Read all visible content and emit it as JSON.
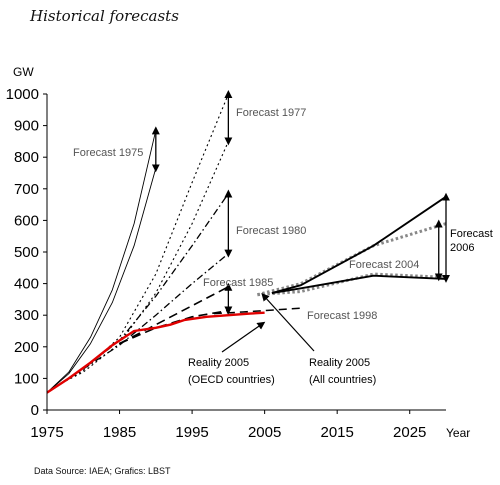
{
  "heading": "Historical forecasts",
  "source": "Data Source: IAEA; Grafics: LBST",
  "chart_data": {
    "type": "line",
    "ylabel": "GW",
    "xlabel": "Year",
    "xlim": [
      1975,
      2030
    ],
    "ylim": [
      0,
      1000
    ],
    "x_ticks": [
      1975,
      1985,
      1995,
      2005,
      2015,
      2025
    ],
    "y_ticks": [
      0,
      100,
      200,
      300,
      400,
      500,
      600,
      700,
      800,
      900,
      1000
    ],
    "grid": false,
    "series": [
      {
        "name": "Forecast 1975",
        "style": "solid-thin",
        "color": "#000000",
        "x": [
          1975,
          1978,
          1981,
          1984,
          1987,
          1990
        ],
        "y": [
          55,
          120,
          230,
          380,
          590,
          885
        ]
      },
      {
        "name": "",
        "style": "solid-thin",
        "color": "#000000",
        "x": [
          1975,
          1978,
          1981,
          1984,
          1987,
          1990
        ],
        "y": [
          55,
          115,
          210,
          340,
          520,
          765
        ]
      },
      {
        "name": "Forecast 1977",
        "style": "dotted",
        "color": "#000000",
        "x": [
          1977,
          1980,
          1985,
          1990,
          1995,
          2000
        ],
        "y": [
          85,
          125,
          230,
          430,
          720,
          1000
        ]
      },
      {
        "name": "",
        "style": "dotted",
        "color": "#000000",
        "x": [
          1977,
          1980,
          1985,
          1990,
          1995,
          2000
        ],
        "y": [
          85,
          120,
          210,
          370,
          590,
          850
        ]
      },
      {
        "name": "Forecast 1980",
        "style": "dashdot",
        "color": "#000000",
        "x": [
          1980,
          1985,
          1990,
          1995,
          2000
        ],
        "y": [
          130,
          220,
          360,
          520,
          685
        ]
      },
      {
        "name": "",
        "style": "dashdot",
        "color": "#000000",
        "x": [
          1980,
          1985,
          1990,
          1995,
          2000
        ],
        "y": [
          130,
          205,
          300,
          400,
          495
        ]
      },
      {
        "name": "Forecast 1985",
        "style": "dashed",
        "color": "#000000",
        "x": [
          1985,
          1990,
          1995,
          2000
        ],
        "y": [
          210,
          270,
          330,
          390
        ]
      },
      {
        "name": "",
        "style": "dashed",
        "color": "#000000",
        "x": [
          1985,
          1990,
          1995,
          2000
        ],
        "y": [
          210,
          260,
          295,
          315
        ]
      },
      {
        "name": "Forecast 1998",
        "style": "long-dashed",
        "color": "#000000",
        "x": [
          1998,
          2002,
          2006,
          2010
        ],
        "y": [
          305,
          310,
          316,
          322
        ]
      },
      {
        "name": "Forecast 2004",
        "style": "gray-dotted",
        "color": "#888888",
        "x": [
          2004,
          2010,
          2020,
          2030
        ],
        "y": [
          365,
          400,
          520,
          590
        ]
      },
      {
        "name": "",
        "style": "gray-dotted",
        "color": "#888888",
        "x": [
          2004,
          2010,
          2020,
          2030
        ],
        "y": [
          365,
          375,
          430,
          420
        ]
      },
      {
        "name": "Forecast 2006",
        "style": "solid-thick",
        "color": "#000000",
        "x": [
          2006,
          2010,
          2020,
          2030
        ],
        "y": [
          370,
          395,
          520,
          675
        ]
      },
      {
        "name": "",
        "style": "solid-thick",
        "color": "#000000",
        "x": [
          2006,
          2010,
          2020,
          2030
        ],
        "y": [
          370,
          385,
          425,
          415
        ]
      },
      {
        "name": "Reality 2005 (OECD countries)",
        "style": "solid-red",
        "color": "#e00000",
        "x": [
          1975,
          1978,
          1981,
          1984,
          1987,
          1990,
          1992,
          1994,
          1997,
          2000,
          2003,
          2005
        ],
        "y": [
          55,
          100,
          150,
          205,
          250,
          260,
          270,
          285,
          295,
          300,
          305,
          308
        ]
      }
    ],
    "annotations": [
      {
        "text": "Forecast 1975",
        "style": "gray"
      },
      {
        "text": "Forecast 1977",
        "style": "gray"
      },
      {
        "text": "Forecast 1980",
        "style": "gray"
      },
      {
        "text": "Forecast 1985",
        "style": "gray"
      },
      {
        "text": "Forecast 1998",
        "style": "gray"
      },
      {
        "text": "Forecast 2004",
        "style": "gray"
      },
      {
        "text": "Forecast",
        "style": "dark"
      },
      {
        "text": "2006",
        "style": "dark"
      },
      {
        "text": "Reality 2005",
        "style": "dark"
      },
      {
        "text": "(OECD countries)",
        "style": "dark"
      },
      {
        "text": "Reality 2005",
        "style": "dark"
      },
      {
        "text": "(All countries)",
        "style": "dark"
      }
    ],
    "range_arrows": [
      {
        "x": 1990,
        "y1": 765,
        "y2": 885
      },
      {
        "x": 2000,
        "y1": 850,
        "y2": 1000
      },
      {
        "x": 2000,
        "y1": 495,
        "y2": 685
      },
      {
        "x": 2000,
        "y1": 315,
        "y2": 390
      },
      {
        "x": 2029,
        "y1": 420,
        "y2": 590
      },
      {
        "x": 2030,
        "y1": 415,
        "y2": 675
      }
    ]
  }
}
